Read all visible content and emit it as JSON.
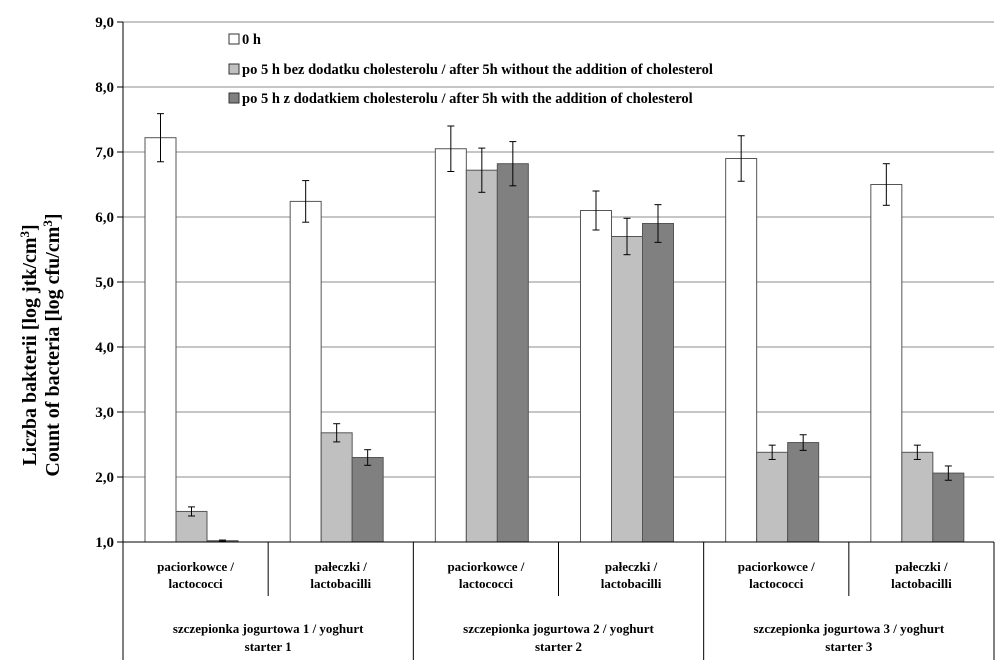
{
  "chart_data": {
    "type": "bar",
    "ylabel_line1": "Liczba bakterii [log jtk/cm",
    "ylabel_line2": "Count of bacteria [log cfu/cm",
    "ylabel_sup": "3",
    "ylabel_suffix": "]",
    "ylim": [
      1.0,
      9.0
    ],
    "yticks": [
      "1,0",
      "2,0",
      "3,0",
      "4,0",
      "5,0",
      "6,0",
      "7,0",
      "8,0",
      "9,0"
    ],
    "grid": true,
    "legend_position": "top",
    "categories": [
      {
        "line1": "paciorkowce /",
        "line2": "lactococci"
      },
      {
        "line1": "pałeczki /",
        "line2": "lactobacilli"
      },
      {
        "line1": "paciorkowce /",
        "line2": "lactococci"
      },
      {
        "line1": "pałeczki /",
        "line2": "lactobacilli"
      },
      {
        "line1": "paciorkowce /",
        "line2": "lactococci"
      },
      {
        "line1": "pałeczki /",
        "line2": "lactobacilli"
      }
    ],
    "groups": [
      {
        "line1": "szczepionka jogurtowa 1 / yoghurt",
        "line2": "starter 1"
      },
      {
        "line1": "szczepionka jogurtowa 2 / yoghurt",
        "line2": "starter 2"
      },
      {
        "line1": "szczepionka jogurtowa 3 / yoghurt",
        "line2": "starter 3"
      }
    ],
    "series": [
      {
        "name": "0 h",
        "color": "#ffffff",
        "values": [
          7.22,
          6.24,
          7.05,
          6.1,
          6.9,
          6.5
        ],
        "errors": [
          0.37,
          0.32,
          0.35,
          0.3,
          0.35,
          0.32
        ]
      },
      {
        "name": "po 5 h bez dodatku cholesterolu / after 5h without the addition of cholesterol",
        "color": "#c0c0c0",
        "values": [
          1.47,
          2.68,
          6.72,
          5.7,
          2.38,
          2.38
        ],
        "errors": [
          0.07,
          0.14,
          0.34,
          0.28,
          0.11,
          0.11
        ]
      },
      {
        "name": "po 5 h z dodatkiem cholesterolu / after 5h with the addition of cholesterol",
        "color": "#808080",
        "values": [
          1.02,
          2.3,
          6.82,
          5.9,
          2.53,
          2.06
        ],
        "errors": [
          0.01,
          0.12,
          0.34,
          0.29,
          0.12,
          0.11
        ]
      }
    ]
  }
}
